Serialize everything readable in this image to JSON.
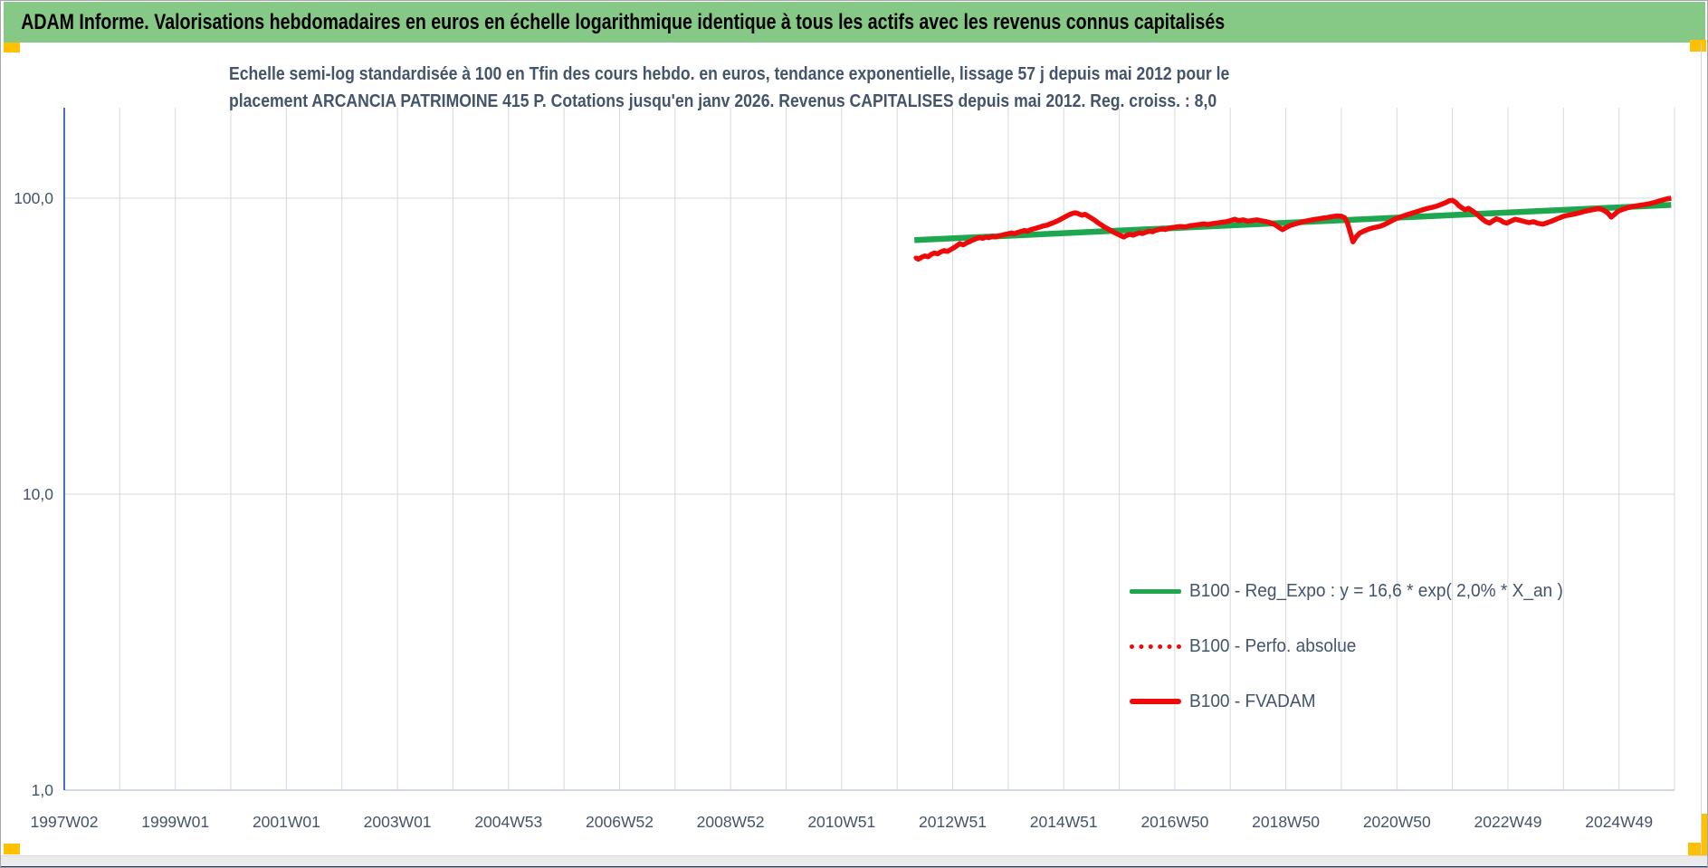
{
  "header": {
    "title": "ADAM Informe. Valorisations hebdomadaires en euros en échelle logarithmique identique à tous les actifs avec les revenus connus capitalisés"
  },
  "chart": {
    "title_line1": "Echelle semi-log standardisée à 100 en Tfin des cours hebdo. en euros, tendance exponentielle, lissage 57 j depuis mai 2012 pour le",
    "title_line2": "placement ARCANCIA PATRIMOINE 415 P. Cotations jusqu'en janv 2026. Revenus CAPITALISES depuis mai 2012. Reg. croiss. : 8,0"
  },
  "legend": {
    "items": [
      {
        "label": "B100 - Reg_Expo : y = 16,6 * exp( 2,0% *  X_an )",
        "swatch": "green-solid"
      },
      {
        "label": "B100 - Perfo. absolue",
        "swatch": "red-dotted"
      },
      {
        "label": "B100 - FVADAM",
        "swatch": "red-solid"
      }
    ]
  },
  "colors": {
    "header_bg": "#86C885",
    "navy": "#44546A",
    "grid": "#D9D9D9",
    "axis_line": "#4472C4",
    "baseline": "#C4CBD8",
    "green": "#1FA750",
    "red": "#EF0A0A",
    "orange": "#FFC000",
    "bottom_navy": "#26356B"
  },
  "chart_data": {
    "type": "line",
    "y_axis": {
      "scale": "log",
      "tick_labels": [
        "100,0",
        "10,0",
        "1,0"
      ],
      "tick_values": [
        100,
        10,
        1
      ],
      "ylim": [
        1,
        202
      ]
    },
    "x_axis": {
      "tick_labels": [
        "1997W02",
        "1999W01",
        "2001W01",
        "2003W01",
        "2004W53",
        "2006W52",
        "2008W52",
        "2010W51",
        "2012W51",
        "2014W51",
        "2016W50",
        "2018W50",
        "2020W50",
        "2022W49",
        "2024W49"
      ],
      "start_year": 1997.02,
      "end_year": 2026.0,
      "tick_step_years": 2,
      "gridlines_every_years": 1
    },
    "series": [
      {
        "name": "B100 - Reg_Expo : y = 16,6 * exp( 2,0% *  X_an )",
        "color": "#1FA750",
        "style": "solid",
        "width": 6.5,
        "points": [
          [
            2012.33,
            72.2
          ],
          [
            2025.96,
            94.9
          ]
        ]
      },
      {
        "name": "B100 - Perfo. absolue",
        "color": "#EF0A0A",
        "style": "dotted",
        "width": 4,
        "same_as": 2
      },
      {
        "name": "B100 - FVADAM",
        "color": "#EF0A0A",
        "style": "solid",
        "width": 5.5,
        "points": [
          [
            2012.35,
            63.0
          ],
          [
            2012.4,
            62.2
          ],
          [
            2012.46,
            63.2
          ],
          [
            2012.52,
            63.8
          ],
          [
            2012.58,
            63.4
          ],
          [
            2012.63,
            64.6
          ],
          [
            2012.69,
            65.3
          ],
          [
            2012.75,
            64.9
          ],
          [
            2012.81,
            65.9
          ],
          [
            2012.87,
            66.5
          ],
          [
            2012.92,
            66.1
          ],
          [
            2012.98,
            67.0
          ],
          [
            2013.04,
            68.0
          ],
          [
            2013.1,
            69.2
          ],
          [
            2013.15,
            70.2
          ],
          [
            2013.21,
            69.6
          ],
          [
            2013.27,
            70.6
          ],
          [
            2013.33,
            71.4
          ],
          [
            2013.38,
            72.2
          ],
          [
            2013.44,
            73.0
          ],
          [
            2013.5,
            73.6
          ],
          [
            2013.56,
            73.2
          ],
          [
            2013.62,
            74.0
          ],
          [
            2013.67,
            73.6
          ],
          [
            2013.73,
            74.3
          ],
          [
            2013.79,
            74.0
          ],
          [
            2013.85,
            74.6
          ],
          [
            2013.9,
            75.0
          ],
          [
            2013.96,
            75.4
          ],
          [
            2014.02,
            75.8
          ],
          [
            2014.08,
            76.3
          ],
          [
            2014.13,
            75.9
          ],
          [
            2014.19,
            76.6
          ],
          [
            2014.25,
            77.2
          ],
          [
            2014.31,
            77.8
          ],
          [
            2014.37,
            77.4
          ],
          [
            2014.42,
            78.2
          ],
          [
            2014.48,
            78.8
          ],
          [
            2014.54,
            79.4
          ],
          [
            2014.6,
            80.0
          ],
          [
            2014.65,
            80.6
          ],
          [
            2014.71,
            81.0
          ],
          [
            2014.77,
            81.8
          ],
          [
            2014.83,
            82.6
          ],
          [
            2014.88,
            83.4
          ],
          [
            2014.94,
            84.4
          ],
          [
            2015.0,
            85.6
          ],
          [
            2015.06,
            86.8
          ],
          [
            2015.12,
            88.0
          ],
          [
            2015.17,
            88.8
          ],
          [
            2015.23,
            89.3
          ],
          [
            2015.29,
            88.5
          ],
          [
            2015.35,
            87.6
          ],
          [
            2015.4,
            88.3
          ],
          [
            2015.46,
            87.0
          ],
          [
            2015.52,
            85.6
          ],
          [
            2015.58,
            84.2
          ],
          [
            2015.63,
            82.8
          ],
          [
            2015.69,
            81.4
          ],
          [
            2015.75,
            80.0
          ],
          [
            2015.81,
            78.8
          ],
          [
            2015.87,
            77.8
          ],
          [
            2015.92,
            76.8
          ],
          [
            2015.98,
            75.8
          ],
          [
            2016.04,
            74.8
          ],
          [
            2016.1,
            74.0
          ],
          [
            2016.15,
            74.8
          ],
          [
            2016.21,
            75.5
          ],
          [
            2016.27,
            75.0
          ],
          [
            2016.33,
            75.8
          ],
          [
            2016.38,
            76.4
          ],
          [
            2016.44,
            76.0
          ],
          [
            2016.5,
            76.8
          ],
          [
            2016.56,
            77.4
          ],
          [
            2016.62,
            77.0
          ],
          [
            2016.67,
            77.8
          ],
          [
            2016.73,
            78.3
          ],
          [
            2016.79,
            78.8
          ],
          [
            2016.85,
            78.4
          ],
          [
            2016.9,
            79.0
          ],
          [
            2016.96,
            79.5
          ],
          [
            2017.04,
            79.9
          ],
          [
            2017.12,
            80.3
          ],
          [
            2017.21,
            80.0
          ],
          [
            2017.29,
            80.7
          ],
          [
            2017.37,
            81.1
          ],
          [
            2017.46,
            81.5
          ],
          [
            2017.54,
            81.9
          ],
          [
            2017.62,
            81.5
          ],
          [
            2017.71,
            82.1
          ],
          [
            2017.79,
            82.5
          ],
          [
            2017.87,
            82.9
          ],
          [
            2017.96,
            83.4
          ],
          [
            2018.04,
            84.2
          ],
          [
            2018.1,
            84.9
          ],
          [
            2018.17,
            84.0
          ],
          [
            2018.25,
            84.5
          ],
          [
            2018.33,
            83.7
          ],
          [
            2018.42,
            84.1
          ],
          [
            2018.5,
            84.5
          ],
          [
            2018.58,
            83.9
          ],
          [
            2018.67,
            83.3
          ],
          [
            2018.75,
            82.5
          ],
          [
            2018.83,
            81.3
          ],
          [
            2018.9,
            79.6
          ],
          [
            2018.96,
            78.3
          ],
          [
            2019.02,
            79.5
          ],
          [
            2019.1,
            80.9
          ],
          [
            2019.19,
            81.9
          ],
          [
            2019.27,
            82.7
          ],
          [
            2019.35,
            83.5
          ],
          [
            2019.44,
            84.1
          ],
          [
            2019.52,
            84.7
          ],
          [
            2019.6,
            85.1
          ],
          [
            2019.69,
            85.7
          ],
          [
            2019.77,
            86.1
          ],
          [
            2019.85,
            86.7
          ],
          [
            2019.94,
            87.1
          ],
          [
            2020.02,
            86.9
          ],
          [
            2020.08,
            85.9
          ],
          [
            2020.13,
            82.5
          ],
          [
            2020.19,
            75.5
          ],
          [
            2020.23,
            71.2
          ],
          [
            2020.29,
            74.2
          ],
          [
            2020.35,
            76.2
          ],
          [
            2020.42,
            77.4
          ],
          [
            2020.5,
            78.5
          ],
          [
            2020.58,
            79.3
          ],
          [
            2020.65,
            79.9
          ],
          [
            2020.73,
            80.5
          ],
          [
            2020.81,
            81.7
          ],
          [
            2020.9,
            83.3
          ],
          [
            2020.98,
            84.9
          ],
          [
            2021.06,
            86.1
          ],
          [
            2021.15,
            87.3
          ],
          [
            2021.23,
            88.3
          ],
          [
            2021.31,
            89.3
          ],
          [
            2021.4,
            90.3
          ],
          [
            2021.48,
            91.3
          ],
          [
            2021.56,
            92.3
          ],
          [
            2021.65,
            93.1
          ],
          [
            2021.73,
            93.9
          ],
          [
            2021.81,
            95.1
          ],
          [
            2021.9,
            96.7
          ],
          [
            2021.96,
            98.0
          ],
          [
            2022.02,
            98.4
          ],
          [
            2022.08,
            96.8
          ],
          [
            2022.13,
            94.6
          ],
          [
            2022.19,
            92.8
          ],
          [
            2022.25,
            91.4
          ],
          [
            2022.31,
            92.4
          ],
          [
            2022.37,
            90.8
          ],
          [
            2022.44,
            89.0
          ],
          [
            2022.5,
            87.0
          ],
          [
            2022.56,
            85.0
          ],
          [
            2022.63,
            83.2
          ],
          [
            2022.69,
            82.4
          ],
          [
            2022.75,
            83.8
          ],
          [
            2022.81,
            85.2
          ],
          [
            2022.88,
            84.4
          ],
          [
            2022.94,
            83.0
          ],
          [
            2023.0,
            82.4
          ],
          [
            2023.08,
            83.8
          ],
          [
            2023.15,
            84.9
          ],
          [
            2023.23,
            84.3
          ],
          [
            2023.31,
            83.5
          ],
          [
            2023.4,
            82.7
          ],
          [
            2023.48,
            83.3
          ],
          [
            2023.56,
            82.3
          ],
          [
            2023.65,
            81.7
          ],
          [
            2023.73,
            82.7
          ],
          [
            2023.81,
            83.7
          ],
          [
            2023.9,
            85.1
          ],
          [
            2023.98,
            86.3
          ],
          [
            2024.06,
            87.3
          ],
          [
            2024.15,
            87.9
          ],
          [
            2024.23,
            88.5
          ],
          [
            2024.31,
            89.3
          ],
          [
            2024.4,
            90.3
          ],
          [
            2024.48,
            90.9
          ],
          [
            2024.56,
            91.5
          ],
          [
            2024.65,
            92.3
          ],
          [
            2024.71,
            91.7
          ],
          [
            2024.77,
            90.5
          ],
          [
            2024.83,
            88.7
          ],
          [
            2024.88,
            86.3
          ],
          [
            2024.94,
            88.2
          ],
          [
            2025.0,
            90.2
          ],
          [
            2025.08,
            91.6
          ],
          [
            2025.17,
            92.8
          ],
          [
            2025.25,
            93.6
          ],
          [
            2025.33,
            94.2
          ],
          [
            2025.42,
            94.8
          ],
          [
            2025.5,
            95.3
          ],
          [
            2025.58,
            95.9
          ],
          [
            2025.67,
            96.9
          ],
          [
            2025.75,
            97.9
          ],
          [
            2025.83,
            98.9
          ],
          [
            2025.9,
            99.6
          ],
          [
            2025.96,
            100.0
          ]
        ]
      }
    ]
  }
}
